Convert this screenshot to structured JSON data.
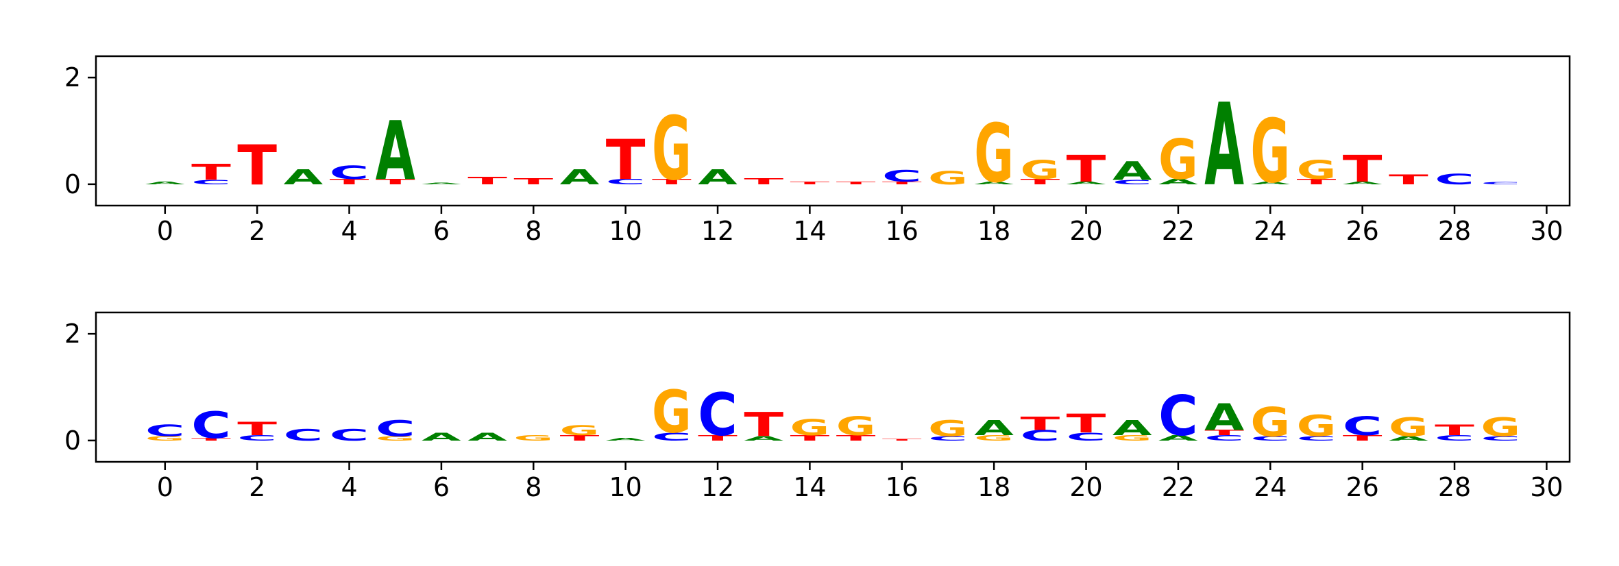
{
  "chart_data": [
    {
      "type": "sequence-logo",
      "xlim": [
        -1,
        31
      ],
      "ylim": [
        -0.4,
        2.4
      ],
      "x_ticks": [
        0,
        2,
        4,
        6,
        8,
        10,
        12,
        14,
        16,
        18,
        20,
        22,
        24,
        26,
        28,
        30
      ],
      "y_ticks": [
        0,
        2
      ],
      "colors": {
        "A": "#008000",
        "C": "#0000ff",
        "G": "#ffa500",
        "T": "#ff0000"
      },
      "positions": [
        {
          "x": 0,
          "letters": [
            {
              "base": "A",
              "height": 0.05
            }
          ]
        },
        {
          "x": 1,
          "letters": [
            {
              "base": "C",
              "height": 0.08
            },
            {
              "base": "T",
              "height": 0.3
            }
          ]
        },
        {
          "x": 2,
          "letters": [
            {
              "base": "T",
              "height": 0.75
            }
          ]
        },
        {
          "x": 3,
          "letters": [
            {
              "base": "A",
              "height": 0.28
            }
          ]
        },
        {
          "x": 4,
          "letters": [
            {
              "base": "T",
              "height": 0.1
            },
            {
              "base": "C",
              "height": 0.25
            }
          ]
        },
        {
          "x": 5,
          "letters": [
            {
              "base": "T",
              "height": 0.1
            },
            {
              "base": "A",
              "height": 1.1
            }
          ]
        },
        {
          "x": 6,
          "letters": [
            {
              "base": "A",
              "height": 0.03
            }
          ]
        },
        {
          "x": 7,
          "letters": [
            {
              "base": "T",
              "height": 0.14
            }
          ]
        },
        {
          "x": 8,
          "letters": [
            {
              "base": "T",
              "height": 0.12
            }
          ]
        },
        {
          "x": 9,
          "letters": [
            {
              "base": "A",
              "height": 0.28
            }
          ]
        },
        {
          "x": 10,
          "letters": [
            {
              "base": "C",
              "height": 0.1
            },
            {
              "base": "T",
              "height": 0.75
            }
          ]
        },
        {
          "x": 11,
          "letters": [
            {
              "base": "T",
              "height": 0.1
            },
            {
              "base": "G",
              "height": 1.2
            }
          ]
        },
        {
          "x": 12,
          "letters": [
            {
              "base": "A",
              "height": 0.28
            }
          ]
        },
        {
          "x": 13,
          "letters": [
            {
              "base": "T",
              "height": 0.12
            }
          ]
        },
        {
          "x": 14,
          "letters": [
            {
              "base": "T",
              "height": 0.05
            }
          ]
        },
        {
          "x": 15,
          "letters": [
            {
              "base": "T",
              "height": 0.05
            }
          ]
        },
        {
          "x": 16,
          "letters": [
            {
              "base": "T",
              "height": 0.05
            },
            {
              "base": "C",
              "height": 0.22
            }
          ]
        },
        {
          "x": 17,
          "letters": [
            {
              "base": "G",
              "height": 0.25
            }
          ]
        },
        {
          "x": 18,
          "letters": [
            {
              "base": "A",
              "height": 0.05
            },
            {
              "base": "G",
              "height": 1.1
            }
          ]
        },
        {
          "x": 19,
          "letters": [
            {
              "base": "T",
              "height": 0.1
            },
            {
              "base": "G",
              "height": 0.35
            }
          ]
        },
        {
          "x": 20,
          "letters": [
            {
              "base": "A",
              "height": 0.05
            },
            {
              "base": "T",
              "height": 0.5
            }
          ]
        },
        {
          "x": 21,
          "letters": [
            {
              "base": "C",
              "height": 0.08
            },
            {
              "base": "A",
              "height": 0.35
            }
          ]
        },
        {
          "x": 22,
          "letters": [
            {
              "base": "A",
              "height": 0.1
            },
            {
              "base": "G",
              "height": 0.75
            }
          ]
        },
        {
          "x": 23,
          "letters": [
            {
              "base": "A",
              "height": 1.55
            }
          ]
        },
        {
          "x": 24,
          "letters": [
            {
              "base": "A",
              "height": 0.05
            },
            {
              "base": "G",
              "height": 1.2
            }
          ]
        },
        {
          "x": 25,
          "letters": [
            {
              "base": "T",
              "height": 0.1
            },
            {
              "base": "G",
              "height": 0.35
            }
          ]
        },
        {
          "x": 26,
          "letters": [
            {
              "base": "A",
              "height": 0.05
            },
            {
              "base": "T",
              "height": 0.5
            }
          ]
        },
        {
          "x": 27,
          "letters": [
            {
              "base": "T",
              "height": 0.18
            }
          ]
        },
        {
          "x": 28,
          "letters": [
            {
              "base": "C",
              "height": 0.2
            }
          ]
        },
        {
          "x": 29,
          "letters": [
            {
              "base": "C",
              "height": 0.04
            }
          ]
        }
      ]
    },
    {
      "type": "sequence-logo",
      "xlim": [
        -1,
        31
      ],
      "ylim": [
        -0.4,
        2.4
      ],
      "x_ticks": [
        0,
        2,
        4,
        6,
        8,
        10,
        12,
        14,
        16,
        18,
        20,
        22,
        24,
        26,
        28,
        30
      ],
      "y_ticks": [
        0,
        2
      ],
      "colors": {
        "A": "#008000",
        "C": "#0000ff",
        "G": "#ffa500",
        "T": "#ff0000"
      },
      "positions": [
        {
          "x": 0,
          "letters": [
            {
              "base": "G",
              "height": 0.08
            },
            {
              "base": "C",
              "height": 0.22
            }
          ]
        },
        {
          "x": 1,
          "letters": [
            {
              "base": "T",
              "height": 0.05
            },
            {
              "base": "C",
              "height": 0.5
            }
          ]
        },
        {
          "x": 2,
          "letters": [
            {
              "base": "C",
              "height": 0.1
            },
            {
              "base": "T",
              "height": 0.25
            }
          ]
        },
        {
          "x": 3,
          "letters": [
            {
              "base": "C",
              "height": 0.22
            }
          ]
        },
        {
          "x": 4,
          "letters": [
            {
              "base": "C",
              "height": 0.22
            }
          ]
        },
        {
          "x": 5,
          "letters": [
            {
              "base": "G",
              "height": 0.08
            },
            {
              "base": "C",
              "height": 0.3
            }
          ]
        },
        {
          "x": 6,
          "letters": [
            {
              "base": "A",
              "height": 0.15
            }
          ]
        },
        {
          "x": 7,
          "letters": [
            {
              "base": "A",
              "height": 0.15
            }
          ]
        },
        {
          "x": 8,
          "letters": [
            {
              "base": "G",
              "height": 0.1
            }
          ]
        },
        {
          "x": 9,
          "letters": [
            {
              "base": "T",
              "height": 0.1
            },
            {
              "base": "G",
              "height": 0.18
            }
          ]
        },
        {
          "x": 10,
          "letters": [
            {
              "base": "A",
              "height": 0.05
            }
          ]
        },
        {
          "x": 11,
          "letters": [
            {
              "base": "C",
              "height": 0.15
            },
            {
              "base": "G",
              "height": 0.8
            }
          ]
        },
        {
          "x": 12,
          "letters": [
            {
              "base": "T",
              "height": 0.1
            },
            {
              "base": "C",
              "height": 0.8
            }
          ]
        },
        {
          "x": 13,
          "letters": [
            {
              "base": "A",
              "height": 0.08
            },
            {
              "base": "T",
              "height": 0.45
            }
          ]
        },
        {
          "x": 14,
          "letters": [
            {
              "base": "T",
              "height": 0.1
            },
            {
              "base": "G",
              "height": 0.3
            }
          ]
        },
        {
          "x": 15,
          "letters": [
            {
              "base": "T",
              "height": 0.1
            },
            {
              "base": "G",
              "height": 0.35
            }
          ]
        },
        {
          "x": 16,
          "letters": [
            {
              "base": "T",
              "height": 0.03
            }
          ]
        },
        {
          "x": 17,
          "letters": [
            {
              "base": "C",
              "height": 0.08
            },
            {
              "base": "G",
              "height": 0.3
            }
          ]
        },
        {
          "x": 18,
          "letters": [
            {
              "base": "G",
              "height": 0.1
            },
            {
              "base": "A",
              "height": 0.28
            }
          ]
        },
        {
          "x": 19,
          "letters": [
            {
              "base": "C",
              "height": 0.2
            },
            {
              "base": "T",
              "height": 0.25
            }
          ]
        },
        {
          "x": 20,
          "letters": [
            {
              "base": "C",
              "height": 0.15
            },
            {
              "base": "T",
              "height": 0.35
            }
          ]
        },
        {
          "x": 21,
          "letters": [
            {
              "base": "G",
              "height": 0.1
            },
            {
              "base": "A",
              "height": 0.28
            }
          ]
        },
        {
          "x": 22,
          "letters": [
            {
              "base": "A",
              "height": 0.1
            },
            {
              "base": "C",
              "height": 0.75
            }
          ]
        },
        {
          "x": 23,
          "letters": [
            {
              "base": "C",
              "height": 0.1
            },
            {
              "base": "T",
              "height": 0.1
            },
            {
              "base": "A",
              "height": 0.5
            }
          ]
        },
        {
          "x": 24,
          "letters": [
            {
              "base": "C",
              "height": 0.08
            },
            {
              "base": "G",
              "height": 0.55
            }
          ]
        },
        {
          "x": 25,
          "letters": [
            {
              "base": "C",
              "height": 0.08
            },
            {
              "base": "G",
              "height": 0.4
            }
          ]
        },
        {
          "x": 26,
          "letters": [
            {
              "base": "T",
              "height": 0.1
            },
            {
              "base": "C",
              "height": 0.35
            }
          ]
        },
        {
          "x": 27,
          "letters": [
            {
              "base": "A",
              "height": 0.08
            },
            {
              "base": "G",
              "height": 0.35
            }
          ]
        },
        {
          "x": 28,
          "letters": [
            {
              "base": "C",
              "height": 0.1
            },
            {
              "base": "T",
              "height": 0.2
            }
          ]
        },
        {
          "x": 29,
          "letters": [
            {
              "base": "C",
              "height": 0.08
            },
            {
              "base": "G",
              "height": 0.35
            }
          ]
        }
      ]
    }
  ]
}
